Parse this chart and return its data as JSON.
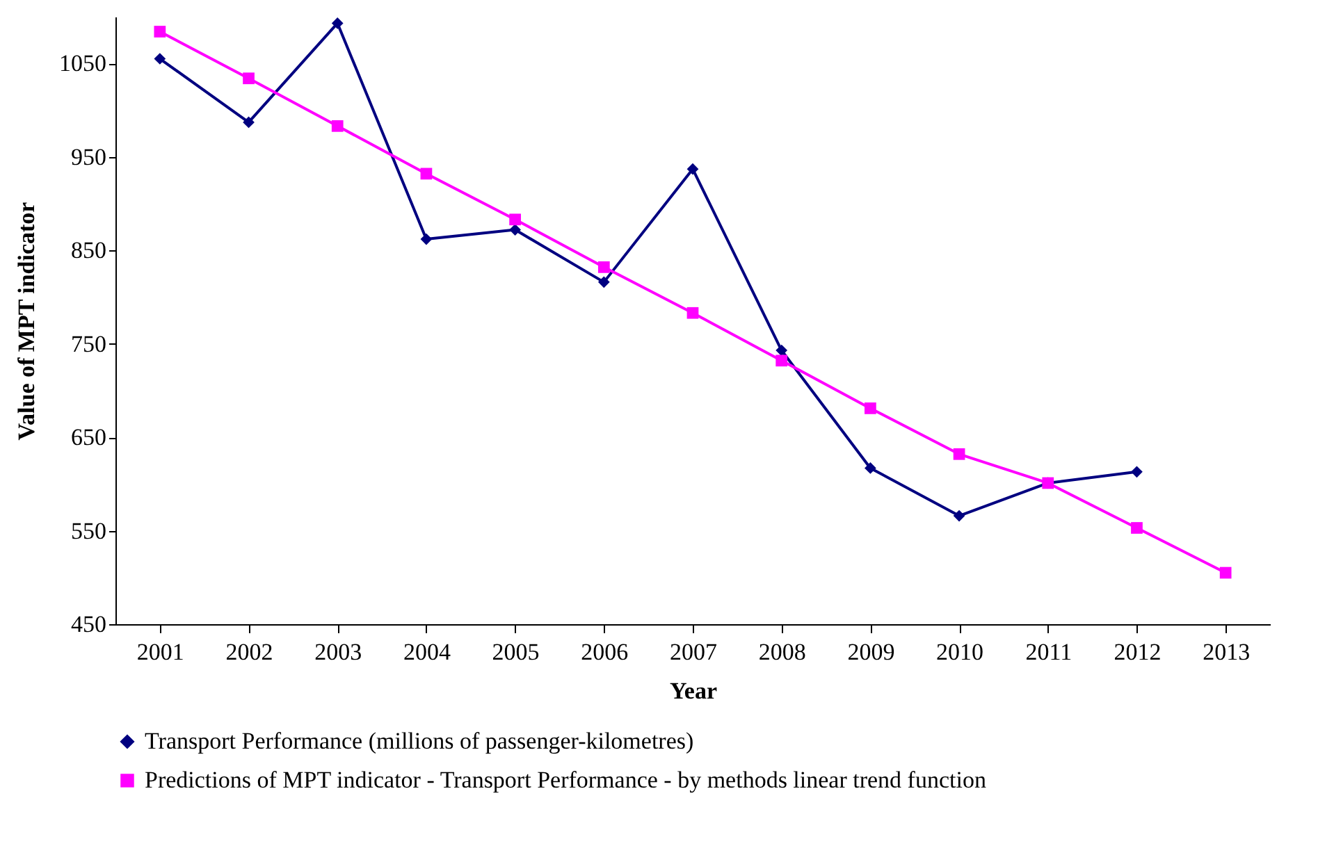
{
  "chart_data": {
    "type": "line",
    "xlabel": "Year",
    "ylabel": "Value of MPT indicator",
    "categories": [
      "2001",
      "2002",
      "2003",
      "2004",
      "2005",
      "2006",
      "2007",
      "2008",
      "2009",
      "2010",
      "2011",
      "2012",
      "2013"
    ],
    "series": [
      {
        "name": "Transport Performance (millions of passenger-kilometres)",
        "color": "#000080",
        "marker": "diamond",
        "values": [
          1055,
          987,
          1093,
          862,
          872,
          816,
          937,
          743,
          617,
          566,
          601,
          613,
          null
        ]
      },
      {
        "name": "Predictions of MPT indicator - Transport Performance - by methods linear trend function",
        "color": "#ff00ff",
        "marker": "square",
        "values": [
          1084,
          1034,
          983,
          932,
          883,
          832,
          783,
          732,
          681,
          632,
          601,
          553,
          505
        ]
      }
    ],
    "ylim": [
      450,
      1100
    ],
    "yticks": [
      450,
      550,
      650,
      750,
      850,
      950,
      1050
    ],
    "grid": false,
    "legend": "bottom"
  }
}
